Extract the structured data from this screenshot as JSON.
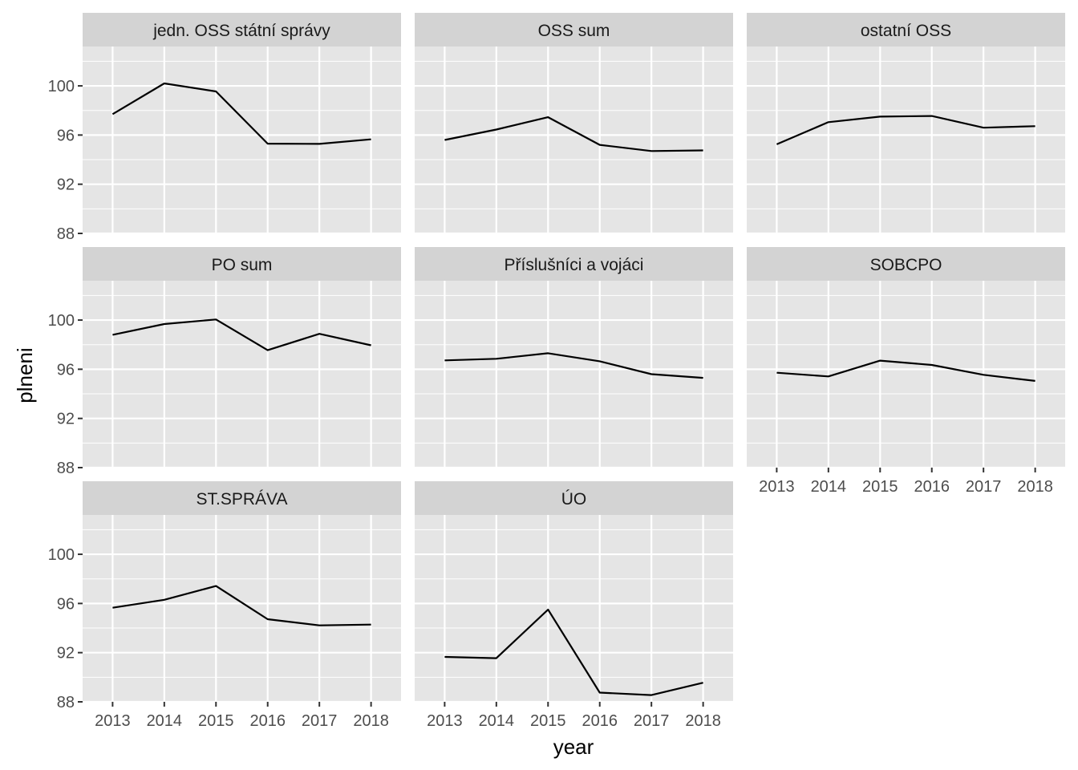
{
  "chart_data": {
    "type": "line",
    "layout": "facet_wrap",
    "xlabel": "year",
    "ylabel": "plneni",
    "ylim": [
      88,
      103.2
    ],
    "y_ticks": [
      88,
      92,
      96,
      100
    ],
    "x_ticks": [
      2013,
      2014,
      2015,
      2016,
      2017,
      2018
    ],
    "xlim": [
      2012.42,
      2018.58
    ],
    "grid": true,
    "colors": {
      "panel": "#e5e5e5",
      "strip": "#d3d3d3",
      "line": "#000000",
      "grid": "#ffffff"
    },
    "x": [
      2013,
      2014,
      2015,
      2016,
      2017,
      2018
    ],
    "panels": [
      {
        "name": "jedn. OSS státní správy",
        "values": [
          97.7,
          100.2,
          99.55,
          95.3,
          95.28,
          95.65
        ]
      },
      {
        "name": "OSS sum",
        "values": [
          95.6,
          96.45,
          97.45,
          95.2,
          94.7,
          94.75
        ]
      },
      {
        "name": "ostatní OSS",
        "values": [
          95.25,
          97.05,
          97.5,
          97.55,
          96.6,
          96.72
        ]
      },
      {
        "name": "PO sum",
        "values": [
          98.8,
          99.68,
          100.05,
          97.55,
          98.88,
          97.95
        ]
      },
      {
        "name": "Příslušníci a vojáci",
        "values": [
          96.72,
          96.85,
          97.3,
          96.65,
          95.6,
          95.3
        ]
      },
      {
        "name": "SOBCPO",
        "values": [
          95.72,
          95.42,
          96.7,
          96.35,
          95.55,
          95.05
        ]
      },
      {
        "name": "ST.SPRÁVA",
        "values": [
          95.65,
          96.3,
          97.42,
          94.72,
          94.22,
          94.28
        ]
      },
      {
        "name": "ÚO",
        "values": [
          91.65,
          91.55,
          95.5,
          88.75,
          88.55,
          89.55
        ]
      }
    ]
  }
}
